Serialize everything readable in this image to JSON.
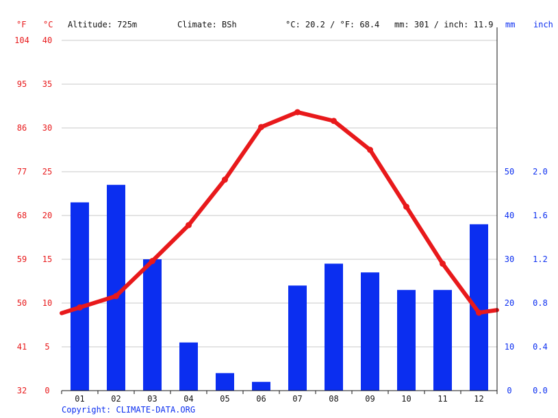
{
  "header": {
    "unit_f": "°F",
    "unit_c": "°C",
    "altitude": "Altitude: 725m",
    "climate": "Climate: BSh",
    "temp_avg": "°C: 20.2 / °F: 68.4",
    "precip_total": "mm: 301 / inch: 11.9",
    "unit_mm": "mm",
    "unit_inch": "inch"
  },
  "footer": {
    "copyright": "Copyright: CLIMATE-DATA.ORG"
  },
  "colors": {
    "temperature": "#e8191b",
    "precipitation": "#0b2ef0",
    "grid": "#c8c8c8",
    "axis": "#111111"
  },
  "chart_data": {
    "type": "bar",
    "categories": [
      "01",
      "02",
      "03",
      "04",
      "05",
      "06",
      "07",
      "08",
      "09",
      "10",
      "11",
      "12"
    ],
    "series": [
      {
        "kind": "bar",
        "axis": "mm",
        "values": [
          43,
          47,
          30,
          11,
          4,
          2,
          24,
          29,
          27,
          23,
          23,
          38
        ]
      },
      {
        "kind": "line",
        "axis": "celsius",
        "values": [
          9.5,
          10.8,
          14.8,
          18.9,
          24.1,
          30.1,
          31.8,
          30.8,
          27.5,
          21.0,
          14.5,
          8.9
        ]
      }
    ],
    "left_axis_c": {
      "ylim": [
        0,
        40
      ],
      "ticks": [
        "0",
        "5",
        "10",
        "15",
        "20",
        "25",
        "30",
        "35",
        "40"
      ]
    },
    "left_axis_f": {
      "ticks": [
        "32",
        "41",
        "50",
        "59",
        "68",
        "77",
        "86",
        "95",
        "104"
      ]
    },
    "right_axis_mm": {
      "ylim": [
        0,
        80
      ],
      "ticks": [
        "0",
        "10",
        "20",
        "30",
        "40",
        "50"
      ]
    },
    "right_axis_inch": {
      "ticks": [
        "0.0",
        "0.4",
        "0.8",
        "1.2",
        "1.6",
        "2.0"
      ]
    },
    "grid": true
  }
}
